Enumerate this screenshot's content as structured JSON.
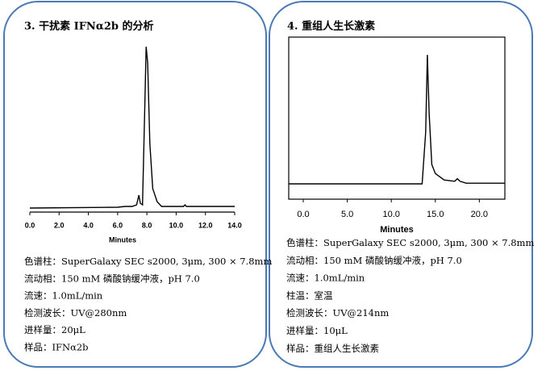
{
  "panels": [
    {
      "title": "3.   干扰素 IFNα2b 的分析",
      "chart": {
        "type": "line",
        "x_label": "Minutes",
        "xlim": [
          0,
          14
        ],
        "ylim": [
          -2.5,
          100
        ],
        "xticks": [
          {
            "value": 0,
            "label": "0.0"
          },
          {
            "value": 2,
            "label": "2.0"
          },
          {
            "value": 4,
            "label": "4.0"
          },
          {
            "value": 6,
            "label": "6.0"
          },
          {
            "value": 8,
            "label": "8.0"
          },
          {
            "value": 10,
            "label": "10.0"
          },
          {
            "value": 12,
            "label": "12.0"
          },
          {
            "value": 14,
            "label": "14.0"
          }
        ],
        "x": [
          0,
          6.0,
          6.5,
          7.0,
          7.3,
          7.45,
          7.55,
          7.7,
          7.85,
          7.95,
          8.05,
          8.2,
          8.4,
          8.7,
          9.0,
          10.5,
          10.6,
          10.7,
          14
        ],
        "values": [
          0,
          0.5,
          1,
          1,
          2,
          8,
          3,
          2,
          60,
          100,
          90,
          40,
          12,
          4,
          1,
          1,
          2,
          1,
          1
        ],
        "color": "#000000",
        "frame": false
      },
      "lines": [
        "色谱柱：SuperGalaxy SEC s2000, 3μm, 300 × 7.8mm",
        "流动相：150 mM 磷酸钠缓冲液，pH 7.0",
        "流速：1.0mL/min",
        "检测波长：UV@280nm",
        "进样量：20μL",
        "样品：IFNα2b"
      ]
    },
    {
      "title": "4.   重组人生长激素",
      "chart": {
        "type": "line",
        "x_label": "Minutes",
        "xlim": [
          -1.65,
          22.9
        ],
        "ylim": [
          -11.9,
          113.75
        ],
        "xticks": [
          {
            "value": 0,
            "label": "0.0"
          },
          {
            "value": 5,
            "label": "5.0"
          },
          {
            "value": 10,
            "label": "10.0"
          },
          {
            "value": 15,
            "label": "15.0"
          },
          {
            "value": 20,
            "label": "20.0"
          }
        ],
        "x": [
          -1.65,
          13.5,
          13.9,
          14.1,
          14.3,
          14.6,
          15,
          16,
          17.2,
          17.5,
          17.8,
          18.5,
          22.9
        ],
        "values": [
          0,
          0,
          40,
          100,
          55,
          15,
          8,
          3,
          2,
          4,
          2,
          0.5,
          0.5
        ],
        "color": "#000000",
        "frame": true
      },
      "lines": [
        "色谱柱：SuperGalaxy SEC s2000, 3μm, 300 × 7.8mm",
        "流动相：150 mM 磷酸钠缓冲液，pH 7.0",
        "流速：1.0mL/min",
        "柱温：室温",
        "检测波长：UV@214nm",
        "进样量：10μL",
        "样品：重组人生长激素"
      ]
    }
  ]
}
